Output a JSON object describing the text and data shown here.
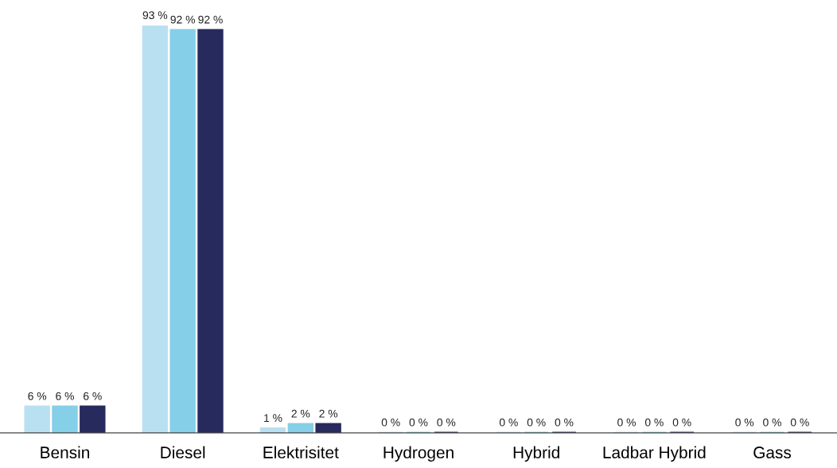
{
  "chart_data": {
    "type": "bar",
    "categories": [
      "Bensin",
      "Diesel",
      "Elektrisitet",
      "Hydrogen",
      "Hybrid",
      "Ladbar Hybrid",
      "Gass"
    ],
    "series": [
      {
        "color": "#b9e0f0",
        "values": [
          6,
          93,
          1,
          0,
          0,
          0,
          0
        ],
        "value_labels": [
          "6 %",
          "93 %",
          "1 %",
          "0 %",
          "0 %",
          "0 %",
          "0 %"
        ]
      },
      {
        "color": "#86cfe8",
        "values": [
          6,
          92,
          2,
          0,
          0,
          0,
          0
        ],
        "value_labels": [
          "6 %",
          "92 %",
          "2 %",
          "0 %",
          "0 %",
          "0 %",
          "0 %"
        ]
      },
      {
        "color": "#272a5c",
        "values": [
          6,
          92,
          2,
          0,
          0,
          0,
          0
        ],
        "value_labels": [
          "6 %",
          "92 %",
          "2 %",
          "0 %",
          "0 %",
          "0 %",
          "0 %"
        ]
      }
    ],
    "grid": false,
    "legend": false,
    "tick_labels": "x"
  }
}
